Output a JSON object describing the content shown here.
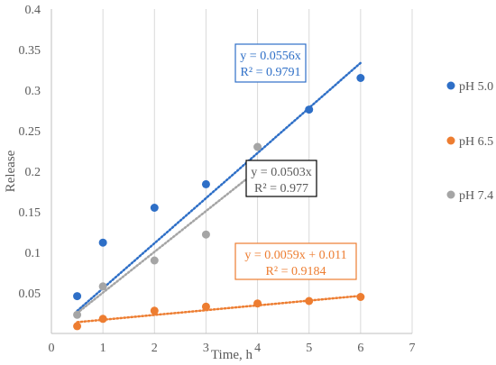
{
  "chart_data": {
    "type": "scatter",
    "xlabel": "Time, h",
    "ylabel": "Release",
    "xlim": [
      0,
      7
    ],
    "ylim": [
      0,
      0.4
    ],
    "xticks": [
      "0",
      "1",
      "2",
      "3",
      "4",
      "5",
      "6",
      "7"
    ],
    "yticks": [
      "0.05",
      "0.1",
      "0.15",
      "0.2",
      "0.25",
      "0.3",
      "0.35",
      "0.4"
    ],
    "grid": "vertical",
    "legend_position": "right",
    "trendline_style": "dotted linear",
    "series": [
      {
        "name": "pH 5.0",
        "color": "#2e6fc7",
        "x": [
          0.5,
          1,
          2,
          3,
          4,
          5,
          6
        ],
        "y": [
          0.046,
          0.112,
          0.155,
          0.184,
          0.208,
          0.276,
          0.315
        ],
        "trendline": {
          "slope": 0.0556,
          "intercept": 0,
          "equation": "y = 0.0556x",
          "r2": "R² = 0.9791"
        }
      },
      {
        "name": "pH 6.5",
        "color": "#ed7d31",
        "x": [
          0.5,
          1,
          2,
          3,
          4,
          5,
          6
        ],
        "y": [
          0.009,
          0.018,
          0.028,
          0.033,
          0.037,
          0.04,
          0.045
        ],
        "trendline": {
          "slope": 0.0059,
          "intercept": 0.011,
          "equation": "y = 0.0059x + 0.011",
          "r2": "R² = 0.9184"
        }
      },
      {
        "name": "pH 7.4",
        "color": "#a5a5a5",
        "x": [
          0.5,
          1,
          2,
          3,
          4
        ],
        "y": [
          0.023,
          0.058,
          0.09,
          0.122,
          0.23
        ],
        "trendline": {
          "slope": 0.0503,
          "intercept": 0,
          "equation": "y = 0.0503x",
          "r2": "R² = 0.977"
        }
      }
    ],
    "annotation_box_colors": [
      "#2e6fc7",
      "#ed7d31",
      "#000000"
    ]
  }
}
